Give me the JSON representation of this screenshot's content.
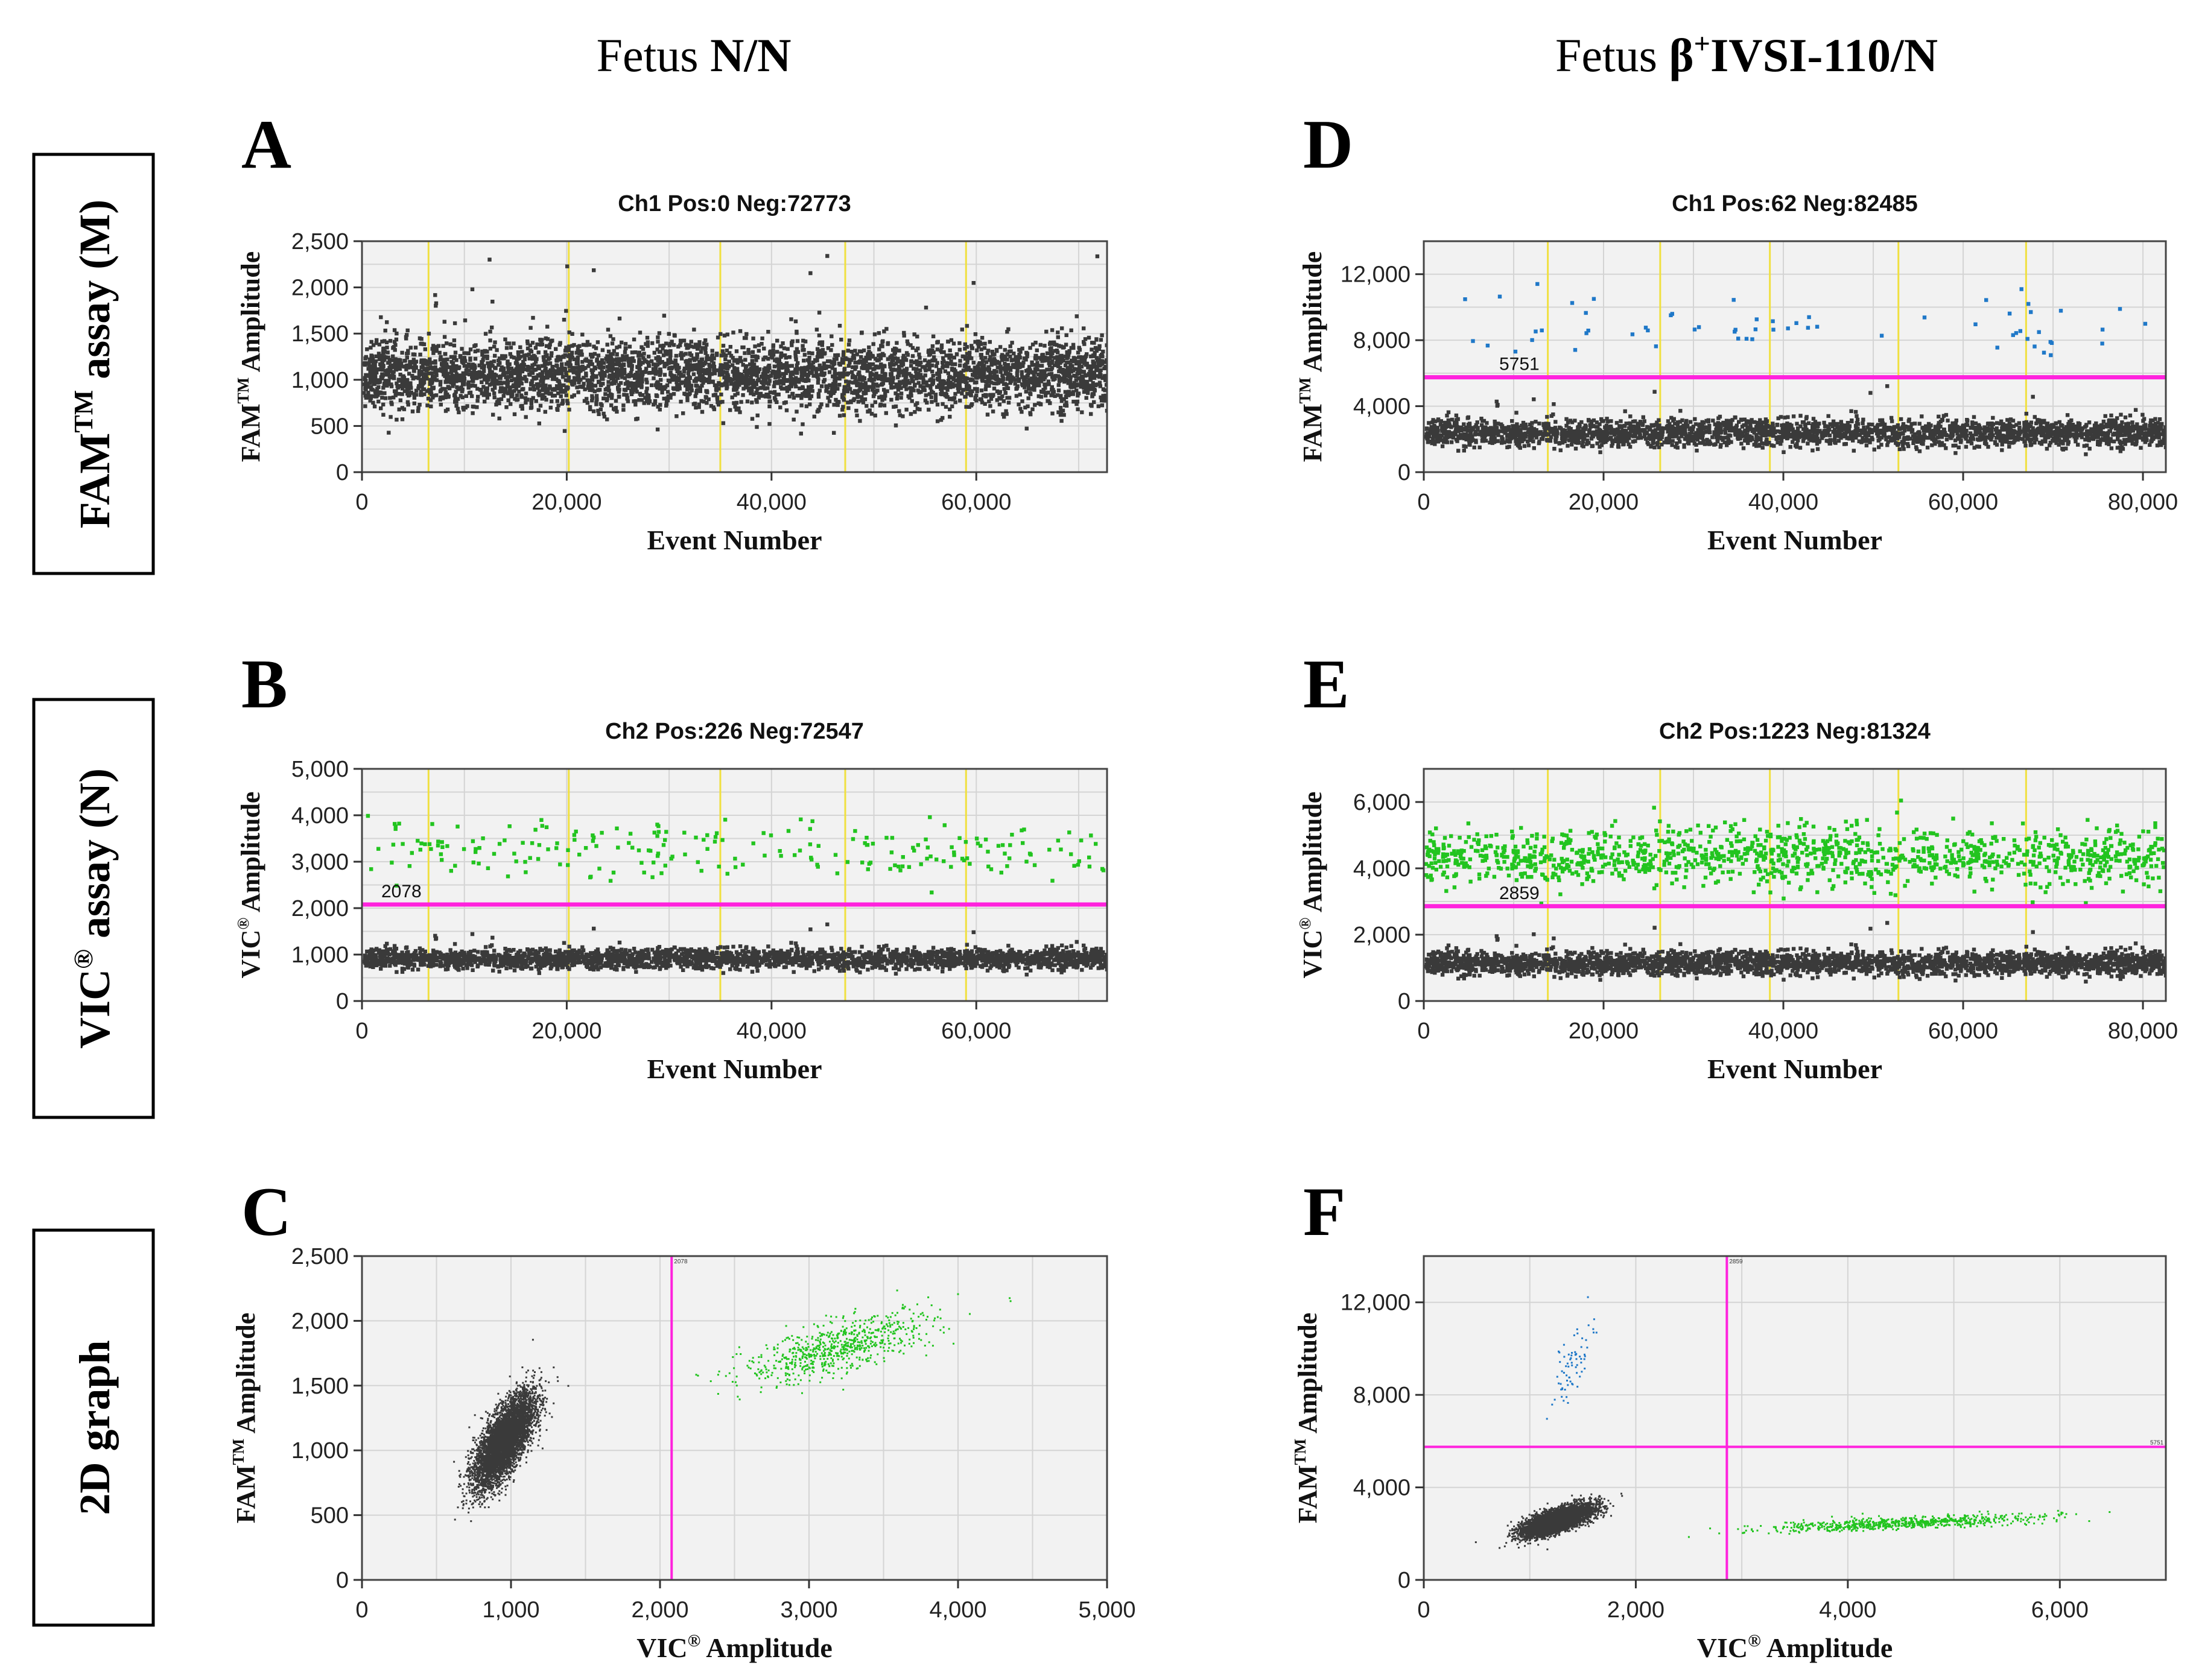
{
  "figure": {
    "column_headers": [
      {
        "prefix": "Fetus ",
        "bold": "N/N"
      },
      {
        "prefix": "Fetus ",
        "bold": "β",
        "sup": "+",
        "bold2": "IVSI-110/N"
      }
    ],
    "row_labels": [
      {
        "main": "FAM",
        "sup": "TM",
        "rest": " assay (M)"
      },
      {
        "main": "VIC",
        "sup": "®",
        "rest": " assay (N)"
      },
      {
        "main": "2D graph",
        "sup": "",
        "rest": ""
      }
    ],
    "colors": {
      "negative": "#3a3a3a",
      "fam_positive": "#1f78c8",
      "vic_positive": "#22c41f",
      "threshold": "#ff22dd",
      "well_separator": "#f0e040",
      "plot_bg": "#f2f2f2",
      "grid": "#d4d4d4"
    }
  },
  "chart_data": [
    {
      "panel": "A",
      "type": "scatter",
      "title": "Ch1 Pos:0 Neg:72773",
      "xlabel": "Event Number",
      "ylabel": {
        "main": "FAM",
        "sup": "TM",
        "rest": " Amplitude"
      },
      "xlim": [
        0,
        72773
      ],
      "ylim": [
        0,
        2500
      ],
      "xticks": [
        0,
        20000,
        40000,
        60000
      ],
      "xtick_labels": [
        "0",
        "20,000",
        "40,000",
        "60,000"
      ],
      "yticks": [
        0,
        500,
        1000,
        1500,
        2000,
        2500
      ],
      "ytick_labels": [
        "0",
        "500",
        "1,000",
        "1,500",
        "2,000",
        "2,500"
      ],
      "well_boundaries": [
        6500,
        20200,
        35000,
        47200,
        59000
      ],
      "series": [
        {
          "name": "negative",
          "color": "#3a3a3a",
          "count": 72773,
          "y_mean": 1080,
          "y_sd": 190
        }
      ]
    },
    {
      "panel": "B",
      "type": "scatter",
      "title": "Ch2 Pos:226 Neg:72547",
      "xlabel": "Event Number",
      "ylabel": {
        "main": "VIC",
        "sup": "®",
        "rest": " Amplitude"
      },
      "xlim": [
        0,
        72773
      ],
      "ylim": [
        0,
        5000
      ],
      "xticks": [
        0,
        20000,
        40000,
        60000
      ],
      "xtick_labels": [
        "0",
        "20,000",
        "40,000",
        "60,000"
      ],
      "yticks": [
        0,
        1000,
        2000,
        3000,
        4000,
        5000
      ],
      "ytick_labels": [
        "0",
        "1,000",
        "2,000",
        "3,000",
        "4,000",
        "5,000"
      ],
      "threshold": 2078,
      "threshold_label": "2078",
      "well_boundaries": [
        6500,
        20200,
        35000,
        47200,
        59000
      ],
      "series": [
        {
          "name": "negative",
          "color": "#3a3a3a",
          "count": 72547,
          "y_mean": 950,
          "y_sd": 110
        },
        {
          "name": "positive",
          "color": "#22c41f",
          "count": 226,
          "y_mean": 3300,
          "y_sd": 300
        }
      ]
    },
    {
      "panel": "C",
      "type": "scatter",
      "xlabel": {
        "main": "VIC",
        "sup": "®",
        "rest": " Amplitude"
      },
      "ylabel": {
        "main": "FAM",
        "sup": "TM",
        "rest": " Amplitude"
      },
      "xlim": [
        0,
        5000
      ],
      "ylim": [
        0,
        2500
      ],
      "xticks": [
        0,
        1000,
        2000,
        3000,
        4000,
        5000
      ],
      "xtick_labels": [
        "0",
        "1,000",
        "2,000",
        "3,000",
        "4,000",
        "5,000"
      ],
      "yticks": [
        0,
        500,
        1000,
        1500,
        2000,
        2500
      ],
      "ytick_labels": [
        "0",
        "500",
        "1,000",
        "1,500",
        "2,000",
        "2,500"
      ],
      "x_threshold": 2078,
      "x_threshold_label": "2078",
      "series": [
        {
          "name": "double negative",
          "color": "#3a3a3a",
          "center": [
            950,
            1080
          ],
          "spread": [
            100,
            180
          ]
        },
        {
          "name": "VIC positive",
          "color": "#22c41f",
          "center": [
            3200,
            1800
          ],
          "spread": [
            320,
            140
          ]
        }
      ]
    },
    {
      "panel": "D",
      "type": "scatter",
      "title": "Ch1 Pos:62 Neg:82485",
      "xlabel": "Event Number",
      "ylabel": {
        "main": "FAM",
        "sup": "TM",
        "rest": " Amplitude"
      },
      "xlim": [
        0,
        82547
      ],
      "ylim": [
        0,
        14000
      ],
      "xticks": [
        0,
        20000,
        40000,
        60000,
        80000
      ],
      "xtick_labels": [
        "0",
        "20,000",
        "40,000",
        "60,000",
        "80,000"
      ],
      "yticks": [
        0,
        4000,
        8000,
        12000
      ],
      "ytick_labels": [
        "0",
        "4,000",
        "8,000",
        "12,000"
      ],
      "threshold": 5751,
      "threshold_label": "5751",
      "well_boundaries": [
        13800,
        26300,
        38500,
        52800,
        67000
      ],
      "series": [
        {
          "name": "negative",
          "color": "#3a3a3a",
          "count": 82485,
          "y_mean": 2500,
          "y_sd": 420
        },
        {
          "name": "positive",
          "color": "#1f78c8",
          "count": 62,
          "y_mean": 9000,
          "y_sd": 900
        }
      ]
    },
    {
      "panel": "E",
      "type": "scatter",
      "title": "Ch2 Pos:1223 Neg:81324",
      "xlabel": "Event Number",
      "ylabel": {
        "main": "VIC",
        "sup": "®",
        "rest": " Amplitude"
      },
      "xlim": [
        0,
        82547
      ],
      "ylim": [
        0,
        7000
      ],
      "xticks": [
        0,
        20000,
        40000,
        60000,
        80000
      ],
      "xtick_labels": [
        "0",
        "20,000",
        "40,000",
        "60,000",
        "80,000"
      ],
      "yticks": [
        0,
        2000,
        4000,
        6000
      ],
      "ytick_labels": [
        "0",
        "2,000",
        "4,000",
        "6,000"
      ],
      "threshold": 2859,
      "threshold_label": "2859",
      "well_boundaries": [
        13800,
        26300,
        38500,
        52800,
        67000
      ],
      "series": [
        {
          "name": "negative",
          "color": "#3a3a3a",
          "count": 81324,
          "y_mean": 1200,
          "y_sd": 180
        },
        {
          "name": "positive",
          "color": "#22c41f",
          "count": 1223,
          "y_mean": 4400,
          "y_sd": 450
        }
      ]
    },
    {
      "panel": "F",
      "type": "scatter",
      "xlabel": {
        "main": "VIC",
        "sup": "®",
        "rest": " Amplitude"
      },
      "ylabel": {
        "main": "FAM",
        "sup": "TM",
        "rest": " Amplitude"
      },
      "xlim": [
        0,
        7000
      ],
      "ylim": [
        0,
        14000
      ],
      "xticks": [
        0,
        2000,
        4000,
        6000
      ],
      "xtick_labels": [
        "0",
        "2,000",
        "4,000",
        "6,000"
      ],
      "yticks": [
        0,
        4000,
        8000,
        12000
      ],
      "ytick_labels": [
        "0",
        "4,000",
        "8,000",
        "12,000"
      ],
      "x_threshold": 2859,
      "y_threshold": 5751,
      "x_threshold_label": "2859",
      "y_threshold_label": "5751",
      "series": [
        {
          "name": "double negative",
          "color": "#3a3a3a",
          "center": [
            1250,
            2600
          ],
          "spread": [
            160,
            330
          ]
        },
        {
          "name": "FAM positive",
          "color": "#1f78c8",
          "center": [
            1400,
            9300
          ],
          "spread": [
            100,
            900
          ]
        },
        {
          "name": "VIC positive",
          "color": "#22c41f",
          "center": [
            4500,
            2500
          ],
          "spread": [
            650,
            180
          ]
        }
      ]
    }
  ]
}
